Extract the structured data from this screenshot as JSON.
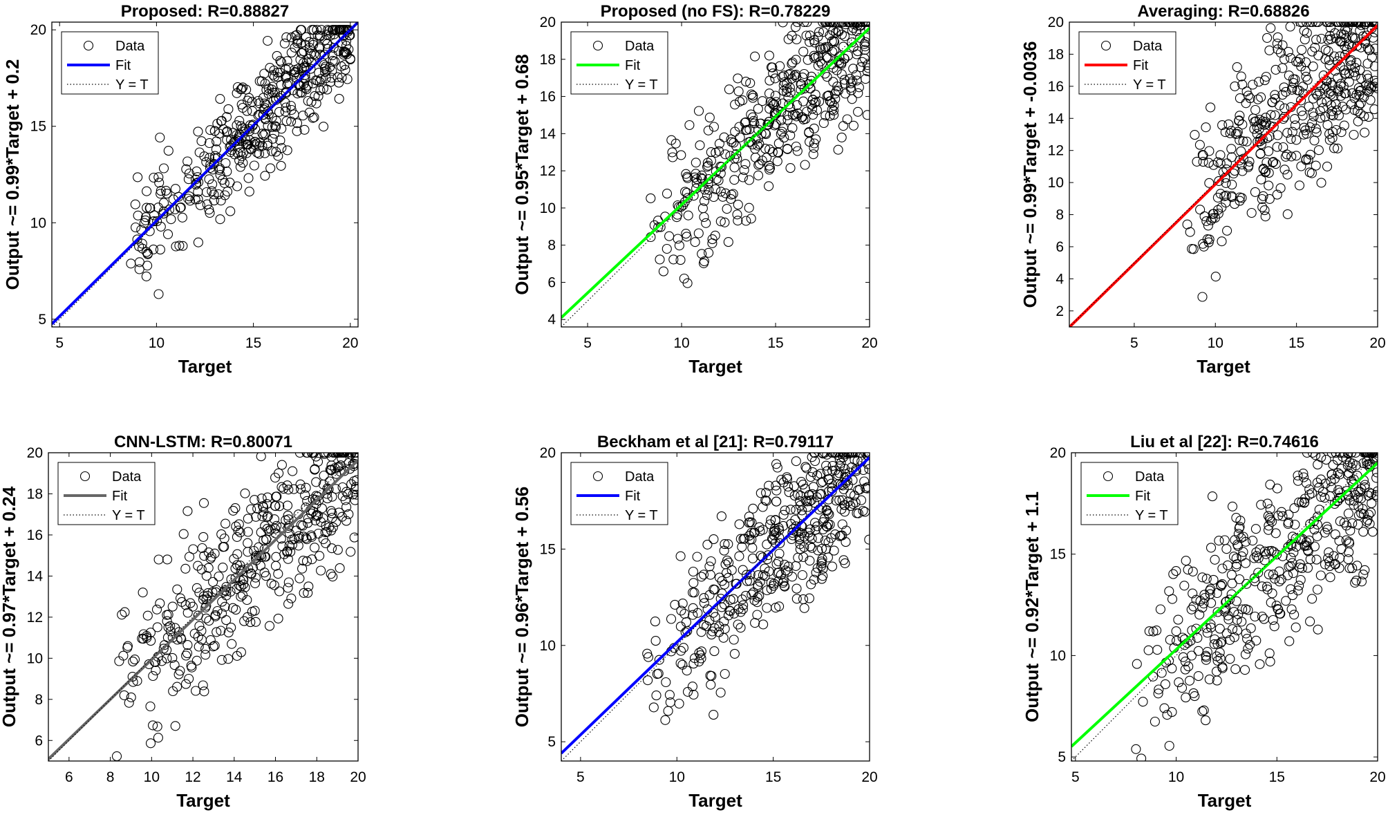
{
  "chart_data": [
    {
      "type": "scatter",
      "title": "Proposed: R=0.88827",
      "xlabel": "Target",
      "ylabel": "Output ~= 0.99*Target + 0.2",
      "xlim": [
        4.6,
        20.4
      ],
      "ylim": [
        4.6,
        20.4
      ],
      "xticks": [
        5,
        10,
        15,
        20
      ],
      "yticks": [
        5,
        10,
        15,
        20
      ],
      "fit": {
        "slope": 0.99,
        "intercept": 0.2,
        "color": "#0000ff"
      },
      "legend": [
        "Data",
        "Fit",
        "Y = T"
      ],
      "n_points": 450,
      "spread": 1.45,
      "seed": 11,
      "xmin_data": 8
    },
    {
      "type": "scatter",
      "title": "Proposed (no FS): R=0.78229",
      "xlabel": "Target",
      "ylabel": "Output ~= 0.95*Target + 0.68",
      "xlim": [
        3.6,
        20
      ],
      "ylim": [
        3.6,
        20
      ],
      "xticks": [
        5,
        10,
        15,
        20
      ],
      "yticks": [
        4,
        6,
        8,
        10,
        12,
        14,
        16,
        18,
        20
      ],
      "fit": {
        "slope": 0.95,
        "intercept": 0.68,
        "color": "#00ff00"
      },
      "legend": [
        "Data",
        "Fit",
        "Y = T"
      ],
      "n_points": 450,
      "spread": 2.0,
      "seed": 23,
      "xmin_data": 8
    },
    {
      "type": "scatter",
      "title": "Averaging: R=0.68826",
      "xlabel": "Target",
      "ylabel": "Output ~= 0.99*Target + -0.0036",
      "xlim": [
        1,
        20
      ],
      "ylim": [
        1,
        20
      ],
      "xticks": [
        5,
        10,
        15,
        20
      ],
      "yticks": [
        2,
        4,
        6,
        8,
        10,
        12,
        14,
        16,
        18,
        20
      ],
      "fit": {
        "slope": 0.99,
        "intercept": -0.0036,
        "color": "#ff0000"
      },
      "legend": [
        "Data",
        "Fit",
        "Y = T"
      ],
      "n_points": 450,
      "spread": 2.8,
      "seed": 37,
      "xmin_data": 8
    },
    {
      "type": "scatter",
      "title": "CNN-LSTM: R=0.80071",
      "xlabel": "Target",
      "ylabel": "Output ~= 0.97*Target + 0.24",
      "xlim": [
        5,
        20
      ],
      "ylim": [
        5,
        20
      ],
      "xticks": [
        6,
        8,
        10,
        12,
        14,
        16,
        18,
        20
      ],
      "yticks": [
        6,
        8,
        10,
        12,
        14,
        16,
        18,
        20
      ],
      "fit": {
        "slope": 0.97,
        "intercept": 0.24,
        "color": "#666666"
      },
      "legend": [
        "Data",
        "Fit",
        "Y = T"
      ],
      "n_points": 450,
      "spread": 1.9,
      "seed": 41,
      "xmin_data": 8
    },
    {
      "type": "scatter",
      "title": "Beckham et al [21]: R=0.79117",
      "xlabel": "Target",
      "ylabel": "Output ~= 0.96*Target + 0.56",
      "xlim": [
        4,
        20
      ],
      "ylim": [
        4,
        20
      ],
      "xticks": [
        5,
        10,
        15,
        20
      ],
      "yticks": [
        5,
        10,
        15,
        20
      ],
      "fit": {
        "slope": 0.96,
        "intercept": 0.56,
        "color": "#0000ff"
      },
      "legend": [
        "Data",
        "Fit",
        "Y = T"
      ],
      "n_points": 450,
      "spread": 2.0,
      "seed": 53,
      "xmin_data": 8
    },
    {
      "type": "scatter",
      "title": "Liu et al [22]: R=0.74616",
      "xlabel": "Target",
      "ylabel": "Output ~= 0.92*Target + 1.1",
      "xlim": [
        4.8,
        20
      ],
      "ylim": [
        4.8,
        20
      ],
      "xticks": [
        5,
        10,
        15,
        20
      ],
      "yticks": [
        5,
        10,
        15,
        20
      ],
      "fit": {
        "slope": 0.92,
        "intercept": 1.1,
        "color": "#00ff00"
      },
      "legend": [
        "Data",
        "Fit",
        "Y = T"
      ],
      "n_points": 450,
      "spread": 2.2,
      "seed": 67,
      "xmin_data": 8
    }
  ]
}
